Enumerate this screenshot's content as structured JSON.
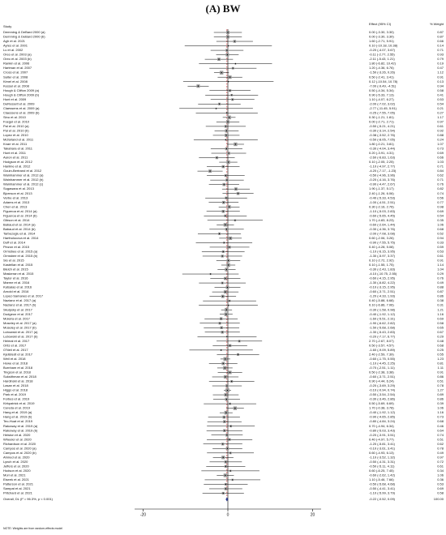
{
  "chart_data": {
    "type": "forest",
    "title": "(A) BW",
    "header_study": "Study",
    "header_effect": "Effect (95% CI)",
    "header_weight": "% Weight",
    "note": "NOTE: Weights are from random-effects model",
    "xlim": [
      -22,
      22
    ],
    "xticks": [
      -20,
      0,
      20
    ],
    "box_color": "#9a9a9a",
    "overall_line_color": "#d62728",
    "rows": [
      [
        "Demming & DeBard 2000 (a)",
        0,
        -3.3,
        3.3,
        "0.00 (-3.30, 3.30)",
        0.87
      ],
      [
        "Demming & DeBard 2000 (b)",
        0,
        -3.3,
        3.3,
        "0.00 (-3.30, 3.30)",
        0.87
      ],
      [
        "Agh et al. 2021",
        1.6,
        -2.71,
        5.91,
        "1.60 (-2.71, 5.91)",
        0.66
      ],
      [
        "Ayres et al. 2001",
        0.1,
        -10.18,
        10.38,
        "0.10 (-10.18, 10.38)",
        0.14
      ],
      [
        "Lu et al. 2002",
        -0.2,
        -4.07,
        3.67,
        "-0.20 (-4.07, 3.67)",
        0.71
      ],
      [
        "Oreo et al. 2003 (a)",
        -0.11,
        -2.77,
        2.55,
        "-0.11 (-2.77, 2.55)",
        0.93
      ],
      [
        "Oreo et al. 2003 (b)",
        -2.11,
        -5.43,
        1.21,
        "-2.11 (-5.43, 1.21)",
        0.79
      ],
      [
        "Rankin et al. 2006",
        1.8,
        -6.82,
        10.42,
        "1.80 (-6.82, 10.42)",
        0.19
      ],
      [
        "Hartman et al. 2007",
        1.2,
        -4.36,
        6.76,
        "1.20 (-4.36, 6.76)",
        0.47
      ],
      [
        "Cross et al. 2007",
        -1.5,
        -3.26,
        0.26,
        "-1.50 (-3.26, 0.26)",
        1.12
      ],
      [
        "Salter et al. 2008",
        0.5,
        -2.41,
        3.41,
        "0.50 (-2.41, 3.41)",
        0.91
      ],
      [
        "Kimel et al. 2008",
        0.12,
        -10.54,
        10.78,
        "0.12 (-10.54, 10.78)",
        0.13
      ],
      [
        "Kessel et al. 2008",
        -7,
        -9.49,
        -4.51,
        "-7.00 (-9.49, -4.51)",
        0.94
      ],
      [
        "Hough & Clifton 2009 (a)",
        0.5,
        -4.34,
        5.34,
        "0.50 (-4.34, 5.34)",
        0.58
      ],
      [
        "Hough & Clifton 2009 (b)",
        0.9,
        -5.33,
        7.13,
        "0.90 (-5.33, 7.13)",
        0.41
      ],
      [
        "Hunt et al. 2009",
        1.1,
        -4.07,
        6.27,
        "1.10 (-4.07, 6.27)",
        0.53
      ],
      [
        "DeRossett et al. 2009",
        -2,
        -7.02,
        3.02,
        "-2.00 (-7.02, 3.02)",
        0.54
      ],
      [
        "Claessens et al. 2009 (a)",
        -2.77,
        -11.45,
        5.91,
        "-2.77 (-11.45, 5.91)",
        0.21
      ],
      [
        "Claessens et al. 2009 (b)",
        -0.25,
        -7.55,
        7.05,
        "-0.25 (-7.55, 7.05)",
        0.27
      ],
      [
        "Sinu et al. 2010",
        0.3,
        -1.21,
        1.81,
        "0.30 (-1.21, 1.81)",
        1.17
      ],
      [
        "Foegel et al. 2010",
        0,
        -2.71,
        2.71,
        "0.00 (-2.71, 2.71)",
        0.97
      ],
      [
        "Pal et al. 2010 (a)",
        -0.5,
        -5.21,
        4.21,
        "-0.50 (-5.21, 4.21)",
        0.61
      ],
      [
        "Pal et al. 2010 (b)",
        -0.3,
        -3.14,
        2.54,
        "-0.30 (-3.14, 2.54)",
        0.92
      ],
      [
        "Lopez et al. 2010",
        -0.38,
        -3.52,
        2.76,
        "-0.38 (-3.52, 2.76)",
        0.88
      ],
      [
        "Mcfarland et al. 2011",
        -0.5,
        -8.05,
        7.05,
        "-0.50 (-8.05, 7.05)",
        0.24
      ],
      [
        "Knarr et al. 2011",
        1.8,
        -0.21,
        3.81,
        "1.80 (-0.21, 3.81)",
        1.07
      ],
      [
        "Takahara et al. 2011",
        -0.3,
        -4.04,
        3.44,
        "-0.30 (-4.04, 3.44)",
        0.73
      ],
      [
        "Hunt et al. 2011",
        0.2,
        -3.91,
        4.31,
        "0.20 (-3.91, 4.31)",
        0.69
      ],
      [
        "Aaron et al. 2011",
        -2.6,
        -6.83,
        1.63,
        "-2.60 (-6.83, 1.63)",
        0.66
      ],
      [
        "Hodgson et al. 2012",
        0.1,
        -2.05,
        2.25,
        "0.10 (-2.05, 2.25)",
        1.03
      ],
      [
        "Hanline et al. 2012",
        -1.1,
        -4.97,
        2.77,
        "-1.10 (-4.97, 2.77)",
        0.71
      ],
      [
        "Gouin-Bertrand et al. 2012",
        -4.2,
        -7.17,
        -1.23,
        "-4.20 (-7.17, -1.23)",
        0.84
      ],
      [
        "Wainhammer et al. 2012 (a)",
        -0.5,
        -4.96,
        3.96,
        "-0.50 (-4.96, 3.96)",
        0.62
      ],
      [
        "Wainhammer et al. 2012 (b)",
        -0.2,
        -4.16,
        3.76,
        "-0.20 (-4.16, 3.76)",
        0.71
      ],
      [
        "Wainhammer et al. 2012 (c)",
        -0.9,
        -4.47,
        2.67,
        "-0.90 (-4.47, 2.67)",
        0.76
      ],
      [
        "Sugawara et al. 2013",
        1.9,
        -1.37,
        5.17,
        "1.90 (-1.37, 5.17)",
        0.82
      ],
      [
        "Bjornson et al. 2013",
        2.4,
        -1.26,
        6.06,
        "2.40 (-1.26, 6.06)",
        0.74
      ],
      [
        "Verbe et al. 2013",
        -0.4,
        -5.33,
        4.53,
        "-0.40 (-5.33, 4.53)",
        0.56
      ],
      [
        "Adams et al. 2013",
        -1,
        -4.51,
        2.51,
        "-1.00 (-4.51, 2.51)",
        0.77
      ],
      [
        "Chen et al. 2013",
        0.3,
        -2.16,
        2.76,
        "0.30 (-2.16, 2.76)",
        0.98
      ],
      [
        "Figueroa et al. 2014 (a)",
        -1.1,
        -5.03,
        2.83,
        "-1.10 (-5.03, 2.83)",
        0.69
      ],
      [
        "Figueroa et al. 2014 (b)",
        -0.6,
        -5.65,
        4.45,
        "-0.60 (-5.65, 4.45)",
        0.54
      ],
      [
        "Gibson et al. 2014",
        1.7,
        -4.83,
        8.23,
        "1.70 (-4.83, 8.23)",
        0.35
      ],
      [
        "Babaud et al. 2014 (a)",
        -0.6,
        -2.64,
        1.44,
        "-0.60 (-2.64, 1.44)",
        1.06
      ],
      [
        "Babaud et al. 2014 (b)",
        -0.3,
        -4.36,
        3.76,
        "-0.30 (-4.36, 3.76)",
        0.68
      ],
      [
        "Tarbezoglu et al. 2014",
        -2,
        -7.08,
        3.08,
        "-2.00 (-7.08, 3.08)",
        0.52
      ],
      [
        "Hartholocova et al. 2014",
        0.6,
        -2.06,
        3.26,
        "0.60 (-2.06, 3.26)",
        0.94
      ],
      [
        "Duff et al. 2014",
        -0.9,
        -7.55,
        5.75,
        "-0.90 (-7.55, 5.75)",
        0.33
      ],
      [
        "Pinzon et al. 2015",
        0.4,
        -4.28,
        5.08,
        "0.40 (-4.28, 5.08)",
        0.59
      ],
      [
        "Ormsbee et al. 2015 (a)",
        -1.1,
        -6.15,
        3.95,
        "-1.10 (-6.15, 3.95)",
        0.53
      ],
      [
        "Ormsbee et al. 2015 (b)",
        -1.3,
        -5.97,
        3.37,
        "-1.30 (-5.97, 3.37)",
        0.61
      ],
      [
        "Sio et al. 2015",
        0.1,
        -2.72,
        2.92,
        "0.10 (-2.72, 2.92)",
        0.91
      ],
      [
        "Kastellan et al. 2015",
        0.1,
        -1.55,
        1.75,
        "0.10 (-1.55, 1.75)",
        1.14
      ],
      [
        "Bleich et al. 2015",
        -0.3,
        -2.43,
        1.83,
        "-0.30 (-2.43, 1.83)",
        1.04
      ],
      [
        "Maskeran et al. 2015",
        -4.1,
        -10.75,
        2.55,
        "-4.10 (-10.75, 2.55)",
        0.29
      ],
      [
        "Taylor et al. 2016",
        -0.6,
        -4.15,
        2.95,
        "-0.60 (-4.15, 2.95)",
        0.76
      ],
      [
        "Marme et al. 2016",
        -1.3,
        -6.82,
        4.22,
        "-1.30 (-6.82, 4.22)",
        0.49
      ],
      [
        "Katsalas et al. 2016",
        -0.1,
        -3.15,
        2.95,
        "-0.10 (-3.15, 2.95)",
        0.88
      ],
      [
        "Arnold et al. 2016",
        -0.6,
        -3.71,
        2.51,
        "-0.60 (-3.71, 2.51)",
        0.87
      ],
      [
        "Lopez-Samanes et al. 2017",
        -1.2,
        -4.33,
        1.93,
        "-1.20 (-4.33, 1.93)",
        0.86
      ],
      [
        "Nazianz et al. 2017 (a)",
        0.4,
        -5.88,
        6.68,
        "0.40 (-5.88, 6.68)",
        0.38
      ],
      [
        "Nazianz et al. 2017 (b)",
        0.1,
        -6.86,
        7.06,
        "0.10 (-6.86, 7.06)",
        0.31
      ],
      [
        "Skulpsky et al. 2017",
        -0.3,
        -1.58,
        0.98,
        "-0.30 (-1.58, 0.98)",
        1.21
      ],
      [
        "Dudgeon et al. 2017",
        -0.4,
        -1.92,
        1.12,
        "-0.40 (-1.92, 1.12)",
        1.16
      ],
      [
        "Moleira et al. 2017",
        -1.6,
        -5.51,
        2.31,
        "-1.60 (-5.51, 2.31)",
        0.69
      ],
      [
        "Moseley et al. 2017 (a)",
        -1.9,
        -6.62,
        2.82,
        "-1.90 (-6.62, 2.82)",
        0.58
      ],
      [
        "Moseley et al. 2017 (b)",
        -1.5,
        -5.68,
        2.68,
        "-1.50 (-5.68, 2.68)",
        0.65
      ],
      [
        "Lubowski et al. 2017 (a)",
        -1.3,
        -5.43,
        2.83,
        "-1.30 (-5.43, 2.83)",
        0.67
      ],
      [
        "Lubowski et al. 2017 (b)",
        -0.2,
        -7.17,
        6.77,
        "-0.20 (-7.17, 6.77)",
        0.29
      ],
      [
        "Heimal et al. 2017",
        2.7,
        -2.67,
        8.07,
        "2.70 (-2.67, 8.07)",
        0.48
      ],
      [
        "Ortiz et al. 2017",
        0.5,
        -3.57,
        4.57,
        "0.50 (-3.57, 4.57)",
        0.68
      ],
      [
        "O'Neil et al. 2017",
        -1.6,
        -9.09,
        5.89,
        "-1.60 (-9.09, 5.89)",
        0.25
      ],
      [
        "Kjellstedt et al. 2017",
        2.4,
        -2.59,
        7.39,
        "2.40 (-2.59, 7.39)",
        0.55
      ],
      [
        "Weil et al. 2018",
        -0.6,
        -1.75,
        0.55,
        "-0.60 (-1.75, 0.55)",
        1.23
      ],
      [
        "Howe et al. 2018",
        -1.1,
        -4.45,
        2.25,
        "-1.10 (-4.45, 2.25)",
        0.81
      ],
      [
        "Burnham et al. 2018",
        -0.7,
        -2.51,
        1.11,
        "-0.70 (-2.51, 1.11)",
        1.11
      ],
      [
        "Tingson et al. 2018",
        0.5,
        -2.38,
        3.38,
        "0.50 (-2.38, 3.38)",
        0.91
      ],
      [
        "Suksithman et al. 2018",
        -0.6,
        -3.71,
        2.51,
        "-0.60 (-3.71, 2.51)",
        0.86
      ],
      [
        "Hardinski et al. 2018",
        0.9,
        -4.44,
        6.24,
        "0.90 (-4.44, 6.24)",
        0.51
      ],
      [
        "Lasan et al. 2018",
        -0.2,
        -3.69,
        3.29,
        "-0.20 (-3.69, 3.29)",
        0.78
      ],
      [
        "Higgs et al. 2018",
        -0.1,
        -0.94,
        0.74,
        "-0.10 (-0.94, 0.74)",
        1.27
      ],
      [
        "Park et al. 2019",
        -0.5,
        -3.54,
        2.54,
        "-0.50 (-3.54, 2.54)",
        0.89
      ],
      [
        "Forbes et al. 2019",
        -0.3,
        -3.46,
        2.86,
        "-0.30 (-3.46, 2.86)",
        0.86
      ],
      [
        "Kirkpatrick et al. 2019",
        0.5,
        -5.69,
        6.69,
        "0.50 (-5.69, 6.69)",
        0.39
      ],
      [
        "Cereda et al. 2019",
        1.7,
        -0.38,
        3.78,
        "1.70 (-0.38, 3.78)",
        1.06
      ],
      [
        "Hang et al. 2019 (a)",
        -0.4,
        -1.92,
        1.12,
        "-0.40 (-1.92, 1.12)",
        1.16
      ],
      [
        "Hang et al. 2019 (b)",
        -0.9,
        -4.65,
        2.85,
        "-0.90 (-4.65, 2.85)",
        0.73
      ],
      [
        "Teo-Huat et al. 2019",
        -0.8,
        -4.84,
        3.24,
        "-0.80 (-4.84, 3.24)",
        0.68
      ],
      [
        "Rakoway et al. 2019 (a)",
        0.7,
        -4.94,
        6.34,
        "0.70 (-4.94, 6.34)",
        0.46
      ],
      [
        "Rakoway et al. 2019 (b)",
        -0.8,
        -5.03,
        3.43,
        "-0.80 (-5.03, 3.43)",
        0.64
      ],
      [
        "Heiston et al. 2020",
        -0.2,
        -3.91,
        3.51,
        "-0.20 (-3.91, 3.51)",
        0.74
      ],
      [
        "Wheeler et al. 2020",
        0.4,
        -4.97,
        5.77,
        "0.40 (-4.97, 5.77)",
        0.51
      ],
      [
        "Richardson et al. 2020",
        -1.2,
        -5.81,
        3.41,
        "-1.20 (-5.81, 3.41)",
        0.62
      ],
      [
        "Campos et al. 2020 (a)",
        -0.1,
        -3.61,
        3.41,
        "-0.10 (-3.61, 3.41)",
        0.78
      ],
      [
        "Campos et al. 2020 (b)",
        0.6,
        -4.93,
        6.13,
        "0.60 (-4.93, 6.13)",
        0.49
      ],
      [
        "Ahmed et al. 2020",
        -1.1,
        -3.52,
        1.32,
        "-1.10 (-3.52, 1.32)",
        0.97
      ],
      [
        "Lynch et al. 2020",
        -0.5,
        -4.31,
        3.31,
        "-0.50 (-4.31, 3.31)",
        0.72
      ],
      [
        "Jeffers et al. 2020",
        -0.5,
        -5.11,
        4.11,
        "-0.50 (-5.11, 4.11)",
        0.61
      ],
      [
        "Hudson et al. 2020",
        0.6,
        -6.25,
        7.45,
        "0.60 (-6.25, 7.45)",
        0.34
      ],
      [
        "Mori et al. 2021",
        -0.6,
        -2.62,
        1.42,
        "-0.60 (-2.62, 1.42)",
        1.06
      ],
      [
        "Eiseek et al. 2021",
        1.1,
        -5.46,
        7.66,
        "1.10 (-5.46, 7.66)",
        0.36
      ],
      [
        "Patterson et al. 2021",
        -0.5,
        -5.68,
        4.68,
        "-0.50 (-5.68, 4.68)",
        0.53
      ],
      [
        "Sampat et al. 2021",
        -0.5,
        -4.41,
        3.41,
        "-0.50 (-4.41, 3.41)",
        0.69
      ],
      [
        "Pritchard et al. 2021",
        -1.1,
        -5.99,
        3.79,
        "-1.10 (-5.99, 3.79)",
        0.58
      ]
    ],
    "overall": {
      "label": "Overall, DL (I² = 96.3%, p < 0.001)",
      "effect": -0.22,
      "low": -0.52,
      "high": 0.09,
      "ci_label": "-0.22 (-0.52, 0.09)",
      "weight": {
        "value": 100,
        "label": "100.00"
      }
    }
  }
}
